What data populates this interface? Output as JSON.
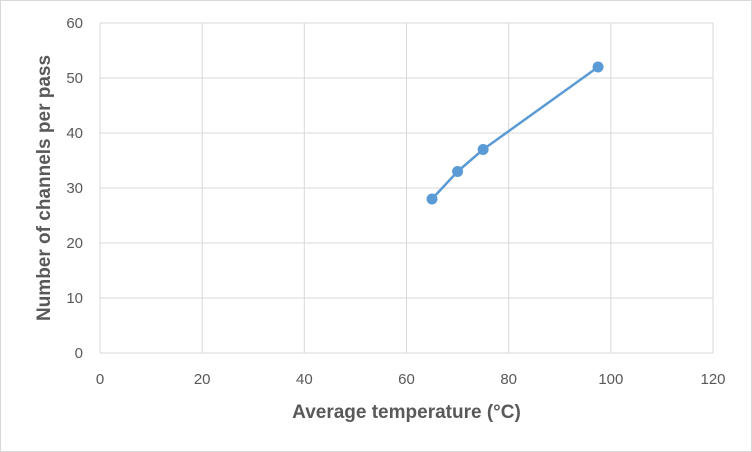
{
  "chart_data": {
    "type": "line",
    "title": "",
    "xlabel": "Average temperature (°C)",
    "ylabel": "Number of channels per pass",
    "xlim": [
      0,
      120
    ],
    "ylim": [
      0,
      60
    ],
    "xticks": [
      0,
      20,
      40,
      60,
      80,
      100,
      120
    ],
    "yticks": [
      0,
      10,
      20,
      30,
      40,
      50,
      60
    ],
    "grid": true,
    "legend": "none",
    "series": [
      {
        "color": "#5b9bd5",
        "marker": "circle",
        "points": [
          {
            "x": 65,
            "y": 28
          },
          {
            "x": 70,
            "y": 33
          },
          {
            "x": 75,
            "y": 37
          },
          {
            "x": 97.5,
            "y": 52
          }
        ]
      }
    ]
  }
}
